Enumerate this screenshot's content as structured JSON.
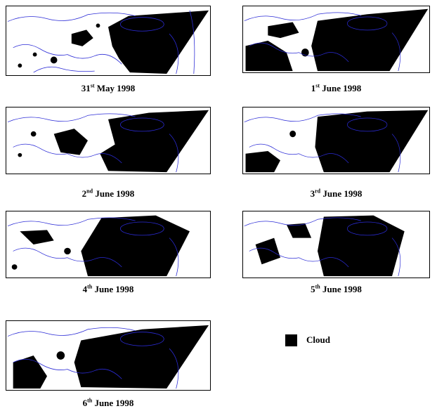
{
  "panels": [
    {
      "day": "31",
      "suffix": "st",
      "rest": " May 1998"
    },
    {
      "day": "1",
      "suffix": "st",
      "rest": " June 1998"
    },
    {
      "day": "2",
      "suffix": "nd",
      "rest": " June 1998"
    },
    {
      "day": "3",
      "suffix": "rd",
      "rest": " June 1998"
    },
    {
      "day": "4",
      "suffix": "th",
      "rest": " June 1998"
    },
    {
      "day": "5",
      "suffix": "th",
      "rest": " June 1998"
    },
    {
      "day": "6",
      "suffix": "th",
      "rest": " June 1998"
    }
  ],
  "legend": {
    "label": "Cloud",
    "color": "#000000"
  },
  "colors": {
    "cloud": "#000000",
    "coastline": "#2b2bd6",
    "frame": "#000000"
  }
}
